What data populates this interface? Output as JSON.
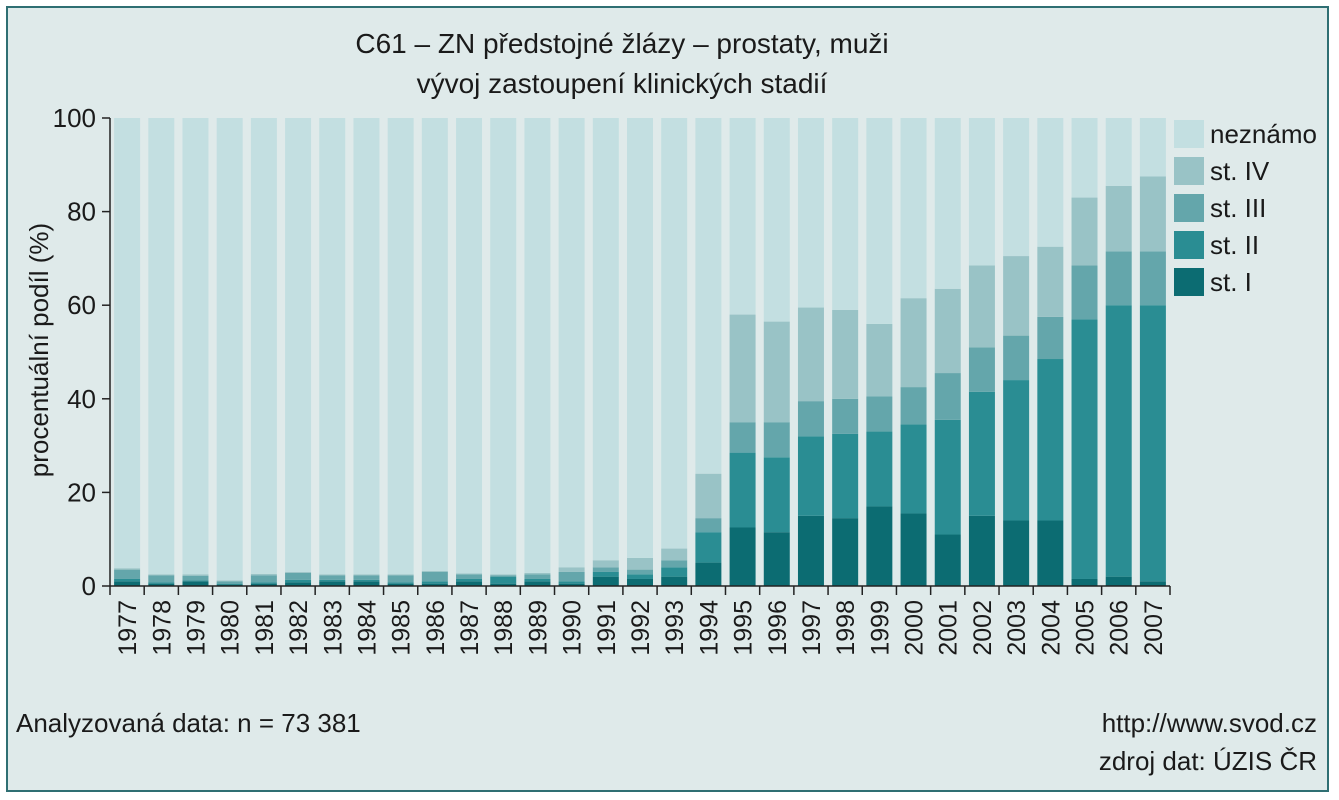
{
  "chart_data": {
    "type": "bar",
    "stacked": true,
    "title": "C61 – ZN předstojné žlázy – prostaty, muži",
    "subtitle": "vývoj zastoupení klinických stadií",
    "ylabel": "procentuální podíl (%)",
    "xlabel": "",
    "ylim": [
      0,
      100
    ],
    "yticks": [
      0,
      20,
      40,
      60,
      80,
      100
    ],
    "grid": false,
    "legend_position": "right",
    "categories": [
      "1977",
      "1978",
      "1979",
      "1980",
      "1981",
      "1982",
      "1983",
      "1984",
      "1985",
      "1986",
      "1987",
      "1988",
      "1989",
      "1990",
      "1991",
      "1992",
      "1993",
      "1994",
      "1995",
      "1996",
      "1997",
      "1998",
      "1999",
      "2000",
      "2001",
      "2002",
      "2003",
      "2004",
      "2005",
      "2006",
      "2007"
    ],
    "series": [
      {
        "name": "st. I",
        "color": "#0c6c72",
        "values": [
          1,
          0.5,
          1,
          0.3,
          0.5,
          0.8,
          1,
          1,
          0.5,
          0.5,
          1,
          0.5,
          1,
          0.5,
          2,
          1.5,
          2,
          5,
          12.5,
          11.5,
          15,
          14.5,
          17,
          15.5,
          11,
          15,
          14,
          14,
          1.5,
          2,
          1
        ]
      },
      {
        "name": "st. II",
        "color": "#2a8d93",
        "values": [
          0.5,
          0.3,
          0.2,
          0.2,
          0.3,
          0.5,
          0.3,
          0.3,
          0.3,
          0.5,
          0.5,
          1.5,
          0.5,
          0.5,
          1,
          1,
          2,
          6.5,
          16,
          16,
          17,
          18,
          16,
          19,
          24.5,
          26.5,
          30,
          34.5,
          55.5,
          58,
          59
        ]
      },
      {
        "name": "st. III",
        "color": "#64a6ab",
        "values": [
          2,
          1.5,
          1,
          0.5,
          1.5,
          1.5,
          1,
          1,
          1.5,
          2,
          1,
          0.3,
          1,
          2,
          1,
          1,
          1.5,
          3,
          6.5,
          7.5,
          7.5,
          7.5,
          7.5,
          8,
          10,
          9.5,
          9.5,
          9,
          11.5,
          11.5,
          11.5
        ]
      },
      {
        "name": "st. IV",
        "color": "#99c3c6",
        "values": [
          0.3,
          0.2,
          0.3,
          0.2,
          0.3,
          0.2,
          0.2,
          0.2,
          0.2,
          0.2,
          0.2,
          0.2,
          0.3,
          1,
          1.5,
          2.5,
          2.5,
          9.5,
          23,
          21.5,
          20,
          19,
          15.5,
          19,
          18,
          17.5,
          17,
          15,
          14.5,
          14,
          16
        ]
      },
      {
        "name": "neznámo",
        "color": "#c3dfe1",
        "values": [
          96.2,
          97.5,
          97.5,
          98.8,
          97.4,
          97,
          97.5,
          97.5,
          97.5,
          96.8,
          97.3,
          97.5,
          97.2,
          96,
          94.5,
          94,
          92,
          76,
          42,
          43.5,
          40.5,
          41,
          44,
          38.5,
          36.5,
          31.5,
          29.5,
          27.5,
          17,
          14.5,
          12.5
        ]
      }
    ]
  },
  "footer": {
    "analyzed": "Analyzovaná data: n = 73 381",
    "url": "http://www.svod.cz",
    "source": "zdroj dat: ÚZIS ČR"
  }
}
